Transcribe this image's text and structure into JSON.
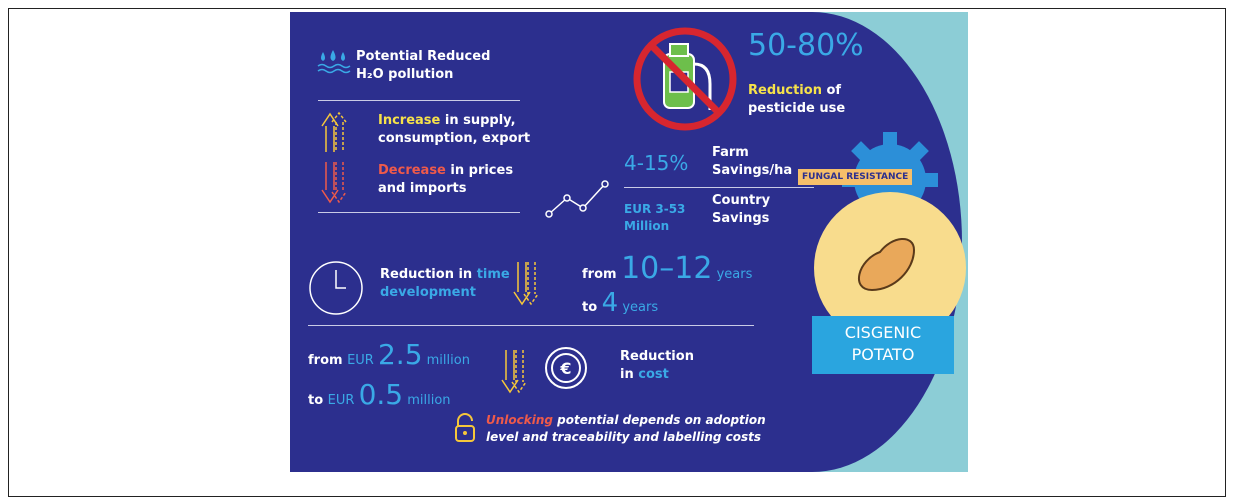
{
  "water": {
    "line1": "Potential Reduced",
    "line2": "H₂O pollution"
  },
  "market": {
    "increase": "Increase",
    "increase_rest1": " in supply,",
    "increase_rest2": "consumption, export",
    "decrease": "Decrease",
    "decrease_rest1": " in prices",
    "decrease_rest2": "and imports"
  },
  "pesticide": {
    "value": "50-80%",
    "highlight": "Reduction",
    "rest1": " of",
    "rest2": "pesticide use"
  },
  "farm": {
    "value": "4-15%",
    "label1": "Farm",
    "label2": "Savings/ha"
  },
  "country": {
    "value1": "EUR 3-53",
    "value2": "Million",
    "label1": "Country",
    "label2": "Savings"
  },
  "badge": "FUNGAL RESISTANCE",
  "product": {
    "line1": "CISGENIC",
    "line2": "POTATO"
  },
  "time": {
    "label1": "Reduction in ",
    "highlight1": "time",
    "highlight2": "development",
    "from": "from ",
    "from_value": "10–12",
    "from_unit": " years",
    "to": "to ",
    "to_value": "4",
    "to_unit": " years"
  },
  "cost": {
    "from": "from ",
    "to": "to ",
    "currency": "EUR ",
    "from_value": "2.5",
    "to_value": "0.5",
    "unit": " million",
    "label1": "Reduction",
    "label2": "in ",
    "highlight": "cost"
  },
  "note": {
    "highlight": "Unlocking",
    "rest1": " potential depends on adoption",
    "rest2": "level and traceability and labelling costs"
  }
}
